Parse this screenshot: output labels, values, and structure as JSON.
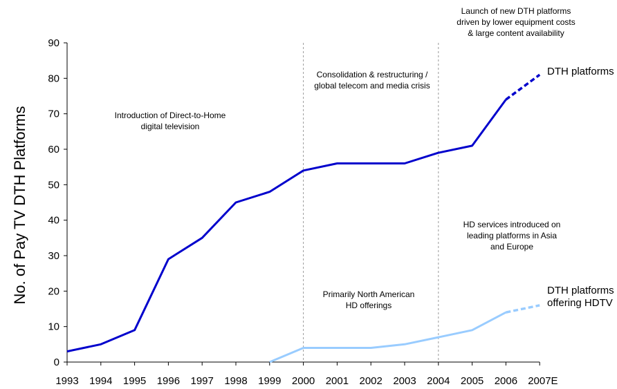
{
  "chart_data": {
    "type": "line",
    "categories": [
      "1993",
      "1994",
      "1995",
      "1996",
      "1997",
      "1998",
      "1999",
      "2000",
      "2001",
      "2002",
      "2003",
      "2004",
      "2005",
      "2006",
      "2007E"
    ],
    "ylabel": "No. of Pay TV DTH Platforms",
    "xlabel": "",
    "ylim": [
      0,
      90
    ],
    "yticks": [
      0,
      10,
      20,
      30,
      40,
      50,
      60,
      70,
      80,
      90
    ],
    "series": [
      {
        "name": "DTH platforms",
        "color": "#0000cc",
        "values": [
          3,
          5,
          9,
          29,
          35,
          45,
          48,
          54,
          56,
          56,
          56,
          59,
          61,
          74,
          81
        ],
        "forecast_from": "2006"
      },
      {
        "name": "DTH platforms offering HDTV",
        "color": "#99ccff",
        "values": [
          null,
          null,
          null,
          null,
          null,
          null,
          0,
          4,
          4,
          4,
          5,
          7,
          9,
          14,
          16
        ],
        "forecast_from": "2006"
      }
    ],
    "series_labels": [
      {
        "lines": [
          "DTH platforms"
        ]
      },
      {
        "lines": [
          "DTH platforms",
          "offering HDTV"
        ]
      }
    ],
    "period_dividers": [
      "2000",
      "2004"
    ],
    "annotations": [
      {
        "lines": [
          "Introduction of Direct-to-Home",
          "digital television"
        ]
      },
      {
        "lines": [
          "Consolidation & restructuring /",
          "global telecom and media crisis"
        ]
      },
      {
        "lines": [
          "Launch of new DTH platforms",
          "driven by lower equipment costs",
          "& large content availability"
        ]
      },
      {
        "lines": [
          "HD services introduced on",
          "leading platforms in Asia",
          "and Europe"
        ]
      },
      {
        "lines": [
          "Primarily North American",
          "HD offerings"
        ]
      }
    ],
    "grid": false,
    "legend": "none"
  }
}
